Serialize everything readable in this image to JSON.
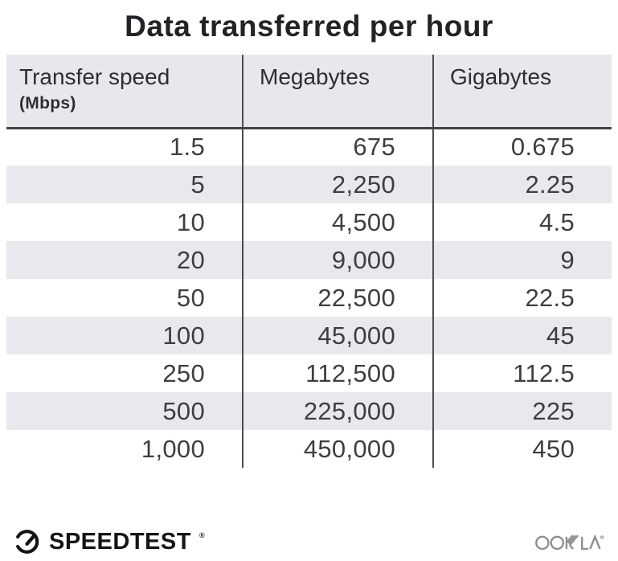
{
  "title": "Data transferred per hour",
  "table": {
    "columns": [
      {
        "label": "Transfer speed",
        "sublabel": "(Mbps)"
      },
      {
        "label": "Megabytes"
      },
      {
        "label": "Gigabytes"
      }
    ],
    "rows": [
      [
        "1.5",
        "675",
        "0.675"
      ],
      [
        "5",
        "2,250",
        "2.25"
      ],
      [
        "10",
        "4,500",
        "4.5"
      ],
      [
        "20",
        "9,000",
        "9"
      ],
      [
        "50",
        "22,500",
        "22.5"
      ],
      [
        "100",
        "45,000",
        "45"
      ],
      [
        "250",
        "112,500",
        "112.5"
      ],
      [
        "500",
        "225,000",
        "225"
      ],
      [
        "1,000",
        "450,000",
        "450"
      ]
    ]
  },
  "footer": {
    "speedtest_label": "SPEEDTEST",
    "speedtest_trademark": "®",
    "ookla_label": "OOKLA",
    "ookla_trademark": "®"
  },
  "colors": {
    "stripe_bg": "#e9e9ed",
    "header_bg": "#e8e8ec",
    "divider": "#4d4d4f",
    "header_rule": "#434345",
    "title_text": "#222326",
    "value_text": "#3d3e40",
    "speedtest_black": "#141414",
    "ookla_gray": "#8f8f92"
  },
  "chart_data": {
    "type": "table",
    "title": "Data transferred per hour",
    "columns": [
      "Transfer speed (Mbps)",
      "Megabytes",
      "Gigabytes"
    ],
    "rows": [
      [
        1.5,
        675,
        0.675
      ],
      [
        5,
        2250,
        2.25
      ],
      [
        10,
        4500,
        4.5
      ],
      [
        20,
        9000,
        9
      ],
      [
        50,
        22500,
        22.5
      ],
      [
        100,
        45000,
        45
      ],
      [
        250,
        112500,
        112.5
      ],
      [
        500,
        225000,
        225
      ],
      [
        1000,
        450000,
        450
      ]
    ]
  }
}
